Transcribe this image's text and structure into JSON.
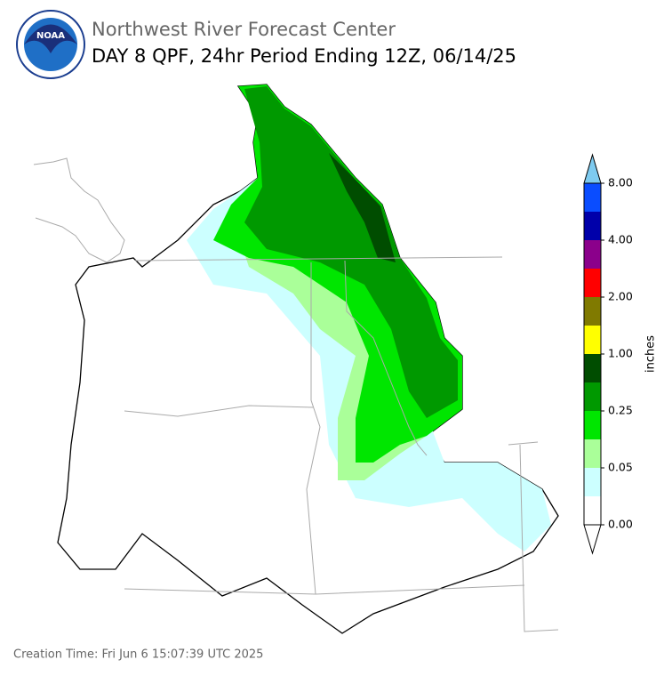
{
  "logo": {
    "text": "NOAA"
  },
  "header": {
    "agency": "Northwest River Forecast Center",
    "title": "DAY 8 QPF, 24hr Period Ending 12Z, 06/14/25"
  },
  "colorbar": {
    "label": "inches",
    "ticks": [
      {
        "value": 0,
        "label": "0.00"
      },
      {
        "value": 0.05,
        "label": "0.05"
      },
      {
        "value": 0.25,
        "label": "0.25"
      },
      {
        "value": 1,
        "label": "1.00"
      },
      {
        "value": 2,
        "label": "2.00"
      },
      {
        "value": 4,
        "label": "4.00"
      },
      {
        "value": 8,
        "label": "8.00"
      }
    ],
    "colors": [
      "#ffffff",
      "#ccffff",
      "#aaff99",
      "#00e600",
      "#009900",
      "#004d00",
      "#ffff00",
      "#807a00",
      "#ff0000",
      "#8b008b",
      "#0000aa",
      "#0a4dff"
    ],
    "under_color": "#ffffff",
    "over_color": "#7ecbf0"
  },
  "footer": {
    "creation_time": "Creation Time: Fri Jun 6 15:07:39 UTC 2025"
  }
}
